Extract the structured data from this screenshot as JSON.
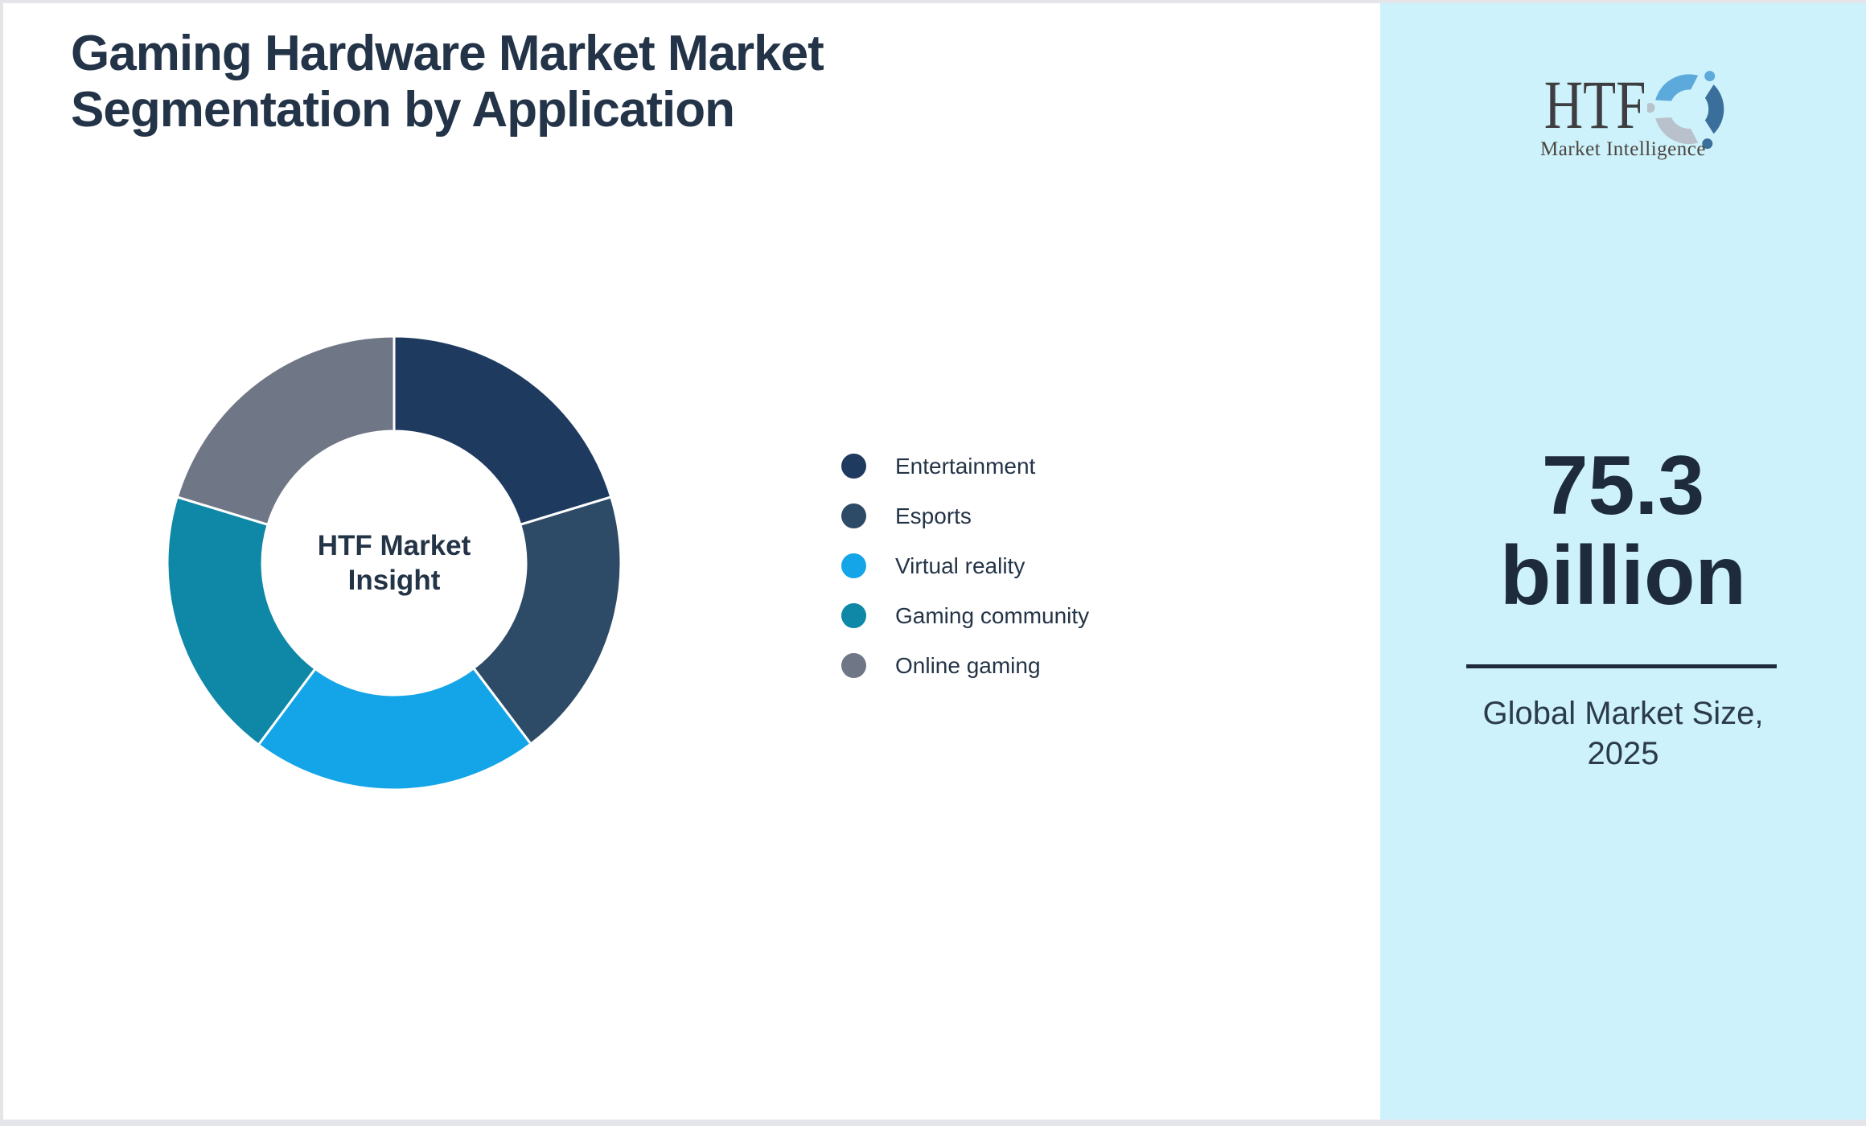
{
  "title": "Gaming Hardware Market Market\nSegmentation by Application",
  "chart_data": {
    "type": "pie",
    "subtype": "donut",
    "title": "Gaming Hardware Market Market Segmentation by Application",
    "center_label": "HTF Market\nInsight",
    "categories": [
      "Entertainment",
      "Esports",
      "Virtual reality",
      "Gaming community",
      "Online gaming"
    ],
    "values": [
      20.3,
      19.4,
      20.5,
      19.5,
      20.3
    ],
    "values_unit": "percent share (estimated from arc angles)",
    "colors": [
      "#1e3a5f",
      "#2d4a66",
      "#14a5e8",
      "#0f87a6",
      "#6f7686"
    ],
    "legend_position": "right-center",
    "donut_hole_ratio": 0.58,
    "start_angle": "top (12 o'clock), clockwise",
    "slice_gap_color": "#ffffff"
  },
  "sidebar": {
    "background": "#cdf2fb",
    "logo": {
      "text": "HTF",
      "subtitle": "Market Intelligence"
    },
    "market_size_value": "75.3",
    "market_size_unit": "billion",
    "caption": "Global Market Size,\n2025"
  }
}
